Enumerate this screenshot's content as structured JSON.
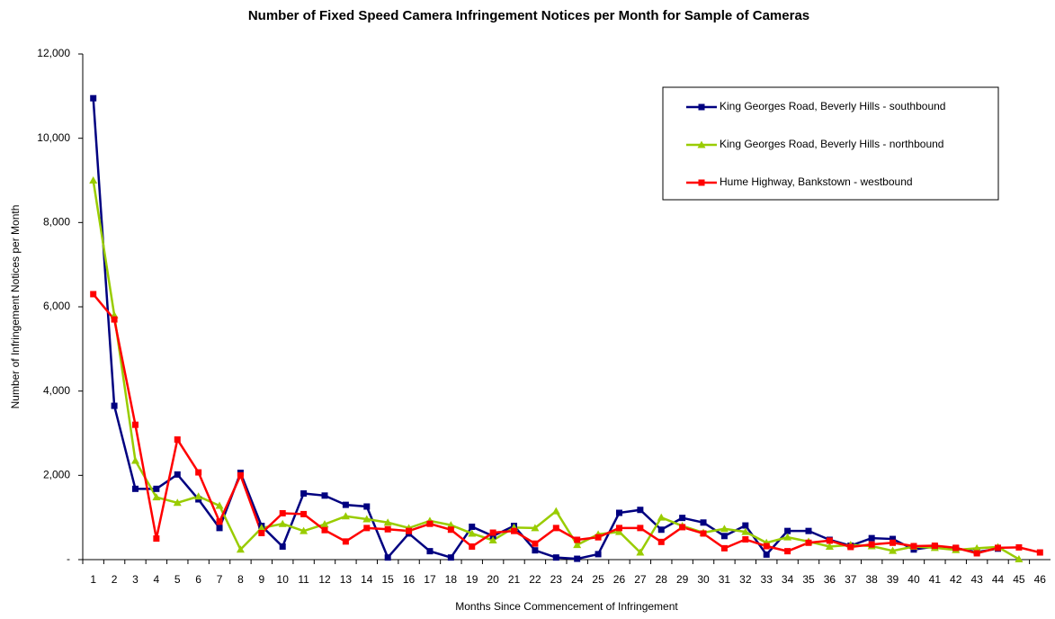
{
  "chart_data": {
    "type": "line",
    "title": "Number of Fixed Speed Camera Infringement Notices per Month for Sample of Cameras",
    "x_label": "Months Since Commencement of Infringement",
    "y_label": "Number of Infringement Notices per Month",
    "categories": [
      1,
      2,
      3,
      4,
      5,
      6,
      7,
      8,
      9,
      10,
      11,
      12,
      13,
      14,
      15,
      16,
      17,
      18,
      19,
      20,
      21,
      22,
      23,
      24,
      25,
      26,
      27,
      28,
      29,
      30,
      31,
      32,
      33,
      34,
      35,
      36,
      37,
      38,
      39,
      40,
      41,
      42,
      43,
      44,
      45,
      46
    ],
    "series": [
      {
        "name": "King Georges Road, Beverly Hills - southbound",
        "color": "#000080",
        "marker": "square",
        "values": [
          10950,
          3650,
          1680,
          1680,
          2020,
          1430,
          750,
          2060,
          800,
          310,
          1570,
          1520,
          1300,
          1260,
          50,
          620,
          200,
          50,
          780,
          560,
          800,
          220,
          50,
          20,
          130,
          1110,
          1180,
          710,
          990,
          880,
          560,
          810,
          120,
          680,
          680,
          470,
          330,
          510,
          490,
          240,
          310,
          270,
          180,
          260,
          null,
          null
        ]
      },
      {
        "name": "King Georges Road, Beverly Hills - northbound",
        "color": "#99cc00",
        "marker": "triangle",
        "values": [
          9000,
          5800,
          2350,
          1480,
          1350,
          1500,
          1280,
          240,
          750,
          850,
          680,
          840,
          1030,
          960,
          880,
          750,
          920,
          820,
          620,
          460,
          760,
          750,
          1150,
          350,
          600,
          660,
          170,
          1000,
          800,
          640,
          730,
          660,
          400,
          530,
          430,
          310,
          350,
          320,
          210,
          310,
          280,
          230,
          270,
          300,
          10,
          null
        ]
      },
      {
        "name": "Hume Highway, Bankstown - westbound",
        "color": "#ff0000",
        "marker": "square",
        "values": [
          6300,
          5700,
          3200,
          500,
          2850,
          2070,
          900,
          2000,
          630,
          1100,
          1080,
          700,
          430,
          750,
          720,
          680,
          850,
          710,
          310,
          640,
          680,
          380,
          750,
          470,
          530,
          750,
          750,
          420,
          770,
          620,
          270,
          480,
          320,
          200,
          400,
          450,
          300,
          360,
          400,
          320,
          330,
          280,
          150,
          280,
          290,
          170
        ]
      }
    ],
    "ylim": [
      0,
      12000
    ],
    "yticks": [
      {
        "value": 0,
        "label": "-"
      },
      {
        "value": 2000,
        "label": "2,000"
      },
      {
        "value": 4000,
        "label": "4,000"
      },
      {
        "value": 6000,
        "label": "6,000"
      },
      {
        "value": 8000,
        "label": "8,000"
      },
      {
        "value": 10000,
        "label": "10,000"
      },
      {
        "value": 12000,
        "label": "12,000"
      }
    ],
    "grid": false,
    "legend": "upper right"
  }
}
